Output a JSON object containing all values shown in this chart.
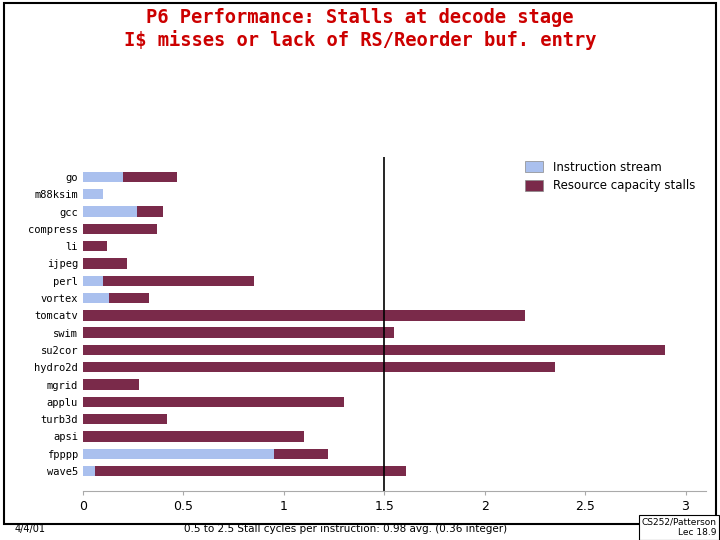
{
  "title_line1": "P6 Performance: Stalls at decode stage",
  "title_line2": "I$ misses or lack of RS/Reorder buf. entry",
  "categories": [
    "wave5",
    "fpppp",
    "apsi",
    "turb3d",
    "applu",
    "mgrid",
    "hydro2d",
    "su2cor",
    "swim",
    "tomcatv",
    "vortex",
    "perl",
    "ijpeg",
    "li",
    "compress",
    "gcc",
    "m88ksim",
    "go"
  ],
  "instruction_stream": [
    0.06,
    0.95,
    0.0,
    0.0,
    0.0,
    0.0,
    0.0,
    0.0,
    0.0,
    0.0,
    0.13,
    0.1,
    0.0,
    0.0,
    0.0,
    0.27,
    0.1,
    0.2
  ],
  "resource_capacity": [
    1.55,
    0.27,
    1.1,
    0.42,
    1.3,
    0.28,
    2.35,
    2.9,
    1.55,
    2.2,
    0.2,
    0.75,
    0.22,
    0.12,
    0.37,
    0.13,
    0.0,
    0.27
  ],
  "color_instruction": "#aac0ee",
  "color_resource": "#7a2a4a",
  "xlim": [
    0,
    3.1
  ],
  "xticks": [
    0,
    0.5,
    1,
    1.5,
    2,
    2.5,
    3
  ],
  "xtick_labels": [
    "0",
    "0.5",
    "1",
    "1.5",
    "2",
    "2.5",
    "3"
  ],
  "vline_x": 1.5,
  "legend_label_instruction": "Instruction stream",
  "legend_label_resource": "Resource capacity stalls",
  "footer_left": "4/4/01",
  "footer_center": "0.5 to 2.5 Stall cycles per instruction: 0.98 avg. (0.36 integer)",
  "footer_right": "CS252/Patterson\nLec 18.9",
  "bg_color": "#ffffff",
  "title_color": "#cc0000"
}
